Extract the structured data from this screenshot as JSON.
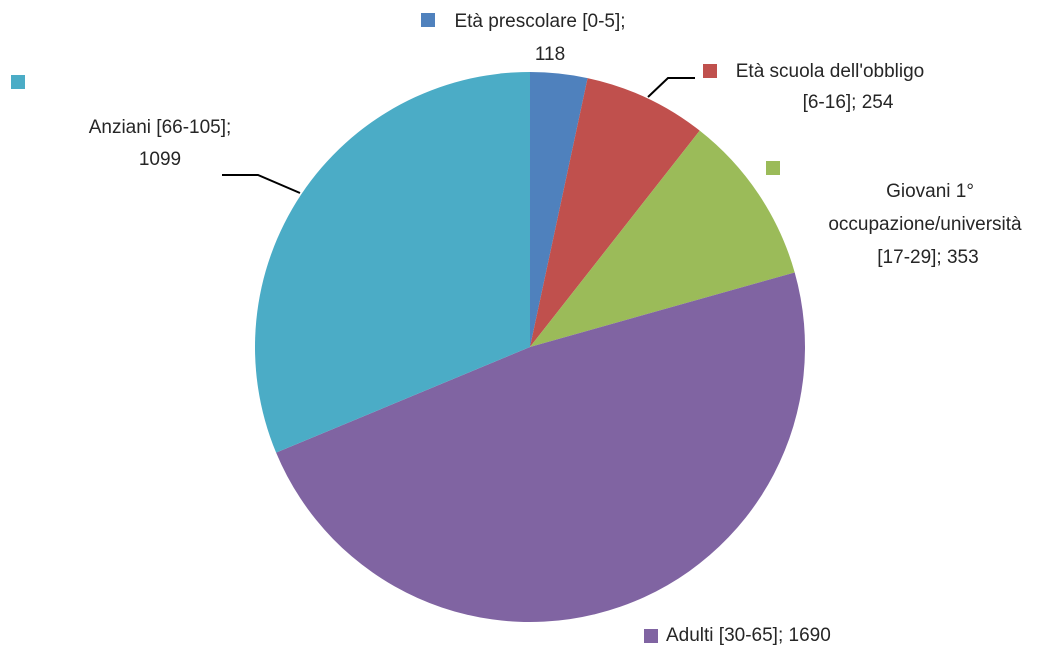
{
  "chart_data": {
    "type": "pie",
    "labels": [
      [
        "Età prescolare [0-5];",
        "118"
      ],
      [
        "Età scuola dell'obbligo",
        "[6-16]; 254"
      ],
      [
        "Giovani 1°",
        "occupazione/università",
        "[17-29]; 353"
      ],
      [
        "Adulti [30-65]; 1690"
      ],
      [
        "Anziani [66-105];",
        "1099"
      ]
    ],
    "values": [
      118,
      254,
      353,
      1690,
      1099
    ],
    "colors": [
      "#4f81bd",
      "#c0504d",
      "#9bbb59",
      "#8064a2",
      "#4bacc6"
    ]
  }
}
